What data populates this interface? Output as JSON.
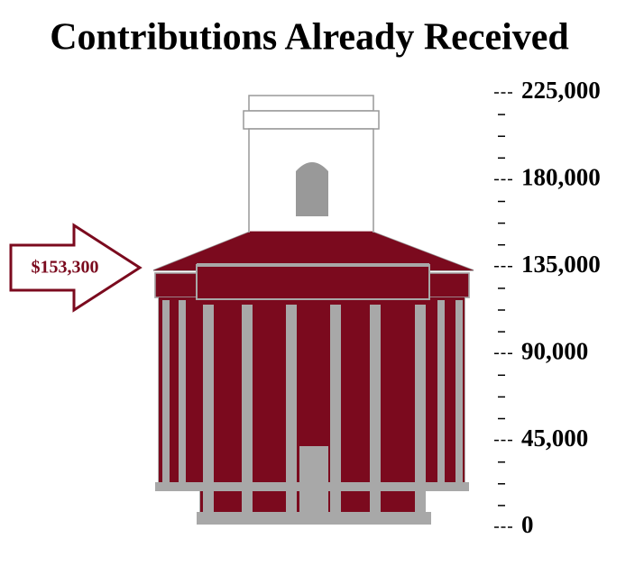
{
  "chart_data": {
    "type": "building-gauge",
    "title": "Contributions Already Received",
    "value": 153300,
    "value_label": "$153,300",
    "color": "#7b0a1e",
    "ylim": [
      0,
      225000
    ],
    "yticks": [
      0,
      {
        "value": 45000,
        "label": "45,000"
      },
      {
        "value": 90000,
        "label": "90,000"
      },
      {
        "value": 135000,
        "label": "135,000"
      },
      {
        "value": 180000,
        "label": "180,000"
      },
      {
        "value": 225000,
        "label": "225,000"
      }
    ],
    "minor_yticks": [
      11250,
      22500,
      33750,
      56250,
      67500,
      78750,
      101250,
      112500,
      123750,
      146250,
      157500,
      168750,
      191250,
      202500,
      213750
    ]
  }
}
